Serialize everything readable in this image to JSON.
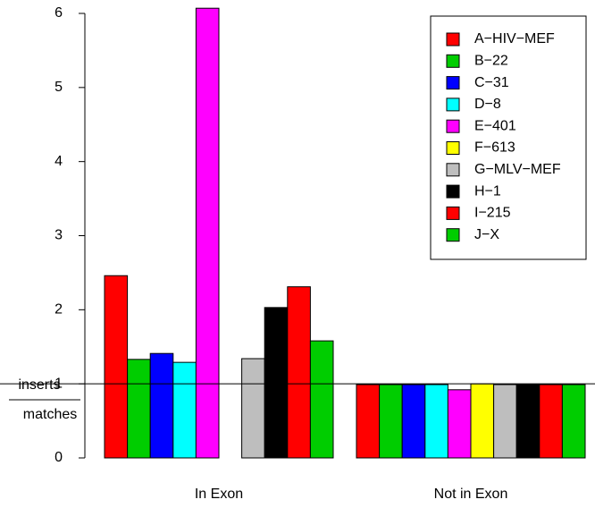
{
  "chart_data": {
    "type": "bar",
    "ylabel": {
      "numerator": "inserts",
      "denominator": "matches"
    },
    "categories": [
      "In Exon",
      "Not in Exon"
    ],
    "series": [
      {
        "name": "A−HIV−MEF",
        "color": "#ff0000",
        "values": [
          2.46,
          0.99
        ]
      },
      {
        "name": "B−22",
        "color": "#00cd00",
        "values": [
          1.33,
          0.99
        ]
      },
      {
        "name": "C−31",
        "color": "#0000ff",
        "values": [
          1.41,
          0.99
        ]
      },
      {
        "name": "D−8",
        "color": "#00ffff",
        "values": [
          1.29,
          0.99
        ]
      },
      {
        "name": "E−401",
        "color": "#ff00ff",
        "values": [
          6.07,
          0.92
        ]
      },
      {
        "name": "F−613",
        "color": "#ffff00",
        "values": [
          0,
          1.0
        ]
      },
      {
        "name": "G−MLV−MEF",
        "color": "#bebebe",
        "values": [
          1.34,
          0.99
        ]
      },
      {
        "name": "H−1",
        "color": "#000000",
        "values": [
          2.03,
          0.99
        ]
      },
      {
        "name": "I−215",
        "color": "#ff0000",
        "values": [
          2.31,
          0.99
        ]
      },
      {
        "name": "J−X",
        "color": "#00cd00",
        "values": [
          1.58,
          0.99
        ]
      }
    ],
    "reference_line": 1,
    "ylim": [
      0,
      6
    ],
    "yticks": [
      0,
      1,
      2,
      3,
      4,
      5,
      6
    ],
    "legend": "top-right"
  }
}
